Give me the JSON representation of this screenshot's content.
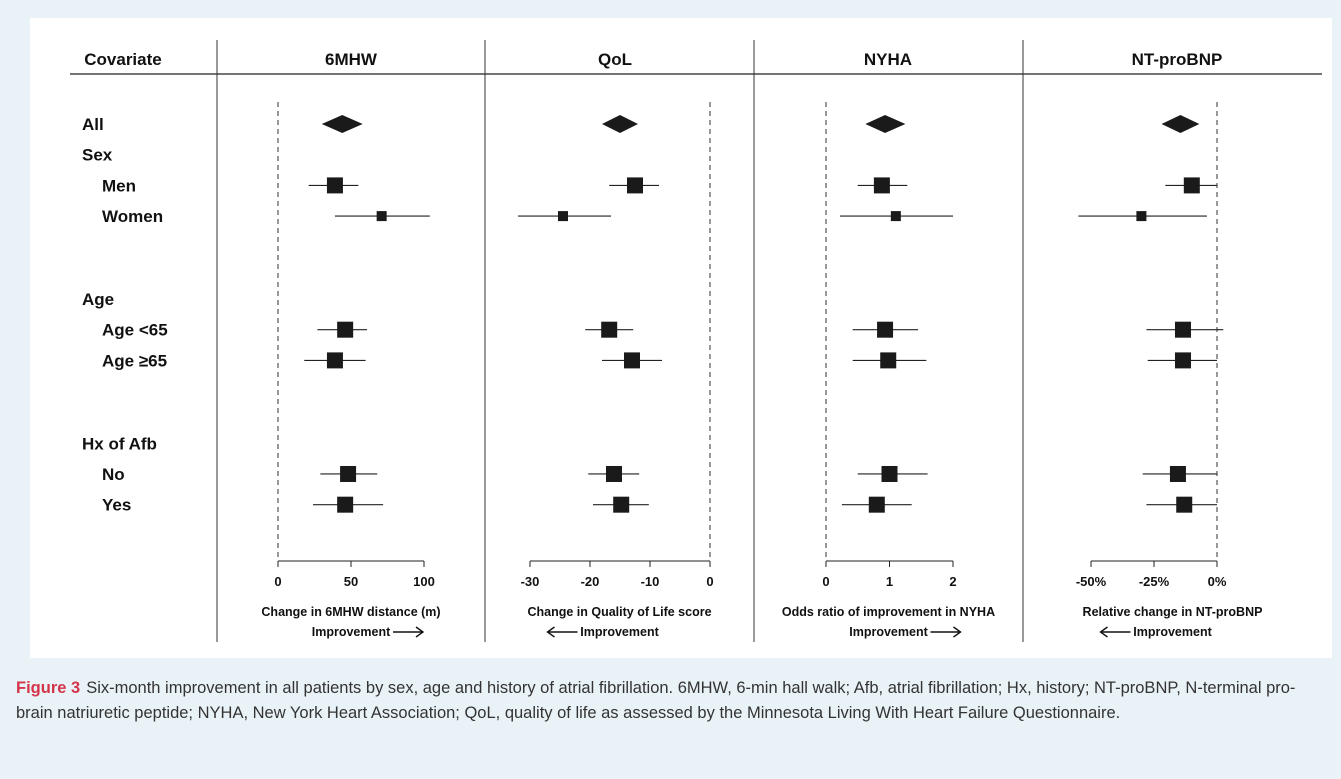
{
  "header": {
    "covariate": "Covariate"
  },
  "rows": [
    {
      "id": "all",
      "label": "All",
      "kind": "item",
      "indent": 0,
      "slot": 0
    },
    {
      "id": "sex",
      "label": "Sex",
      "kind": "group",
      "indent": 0,
      "slot": 1
    },
    {
      "id": "men",
      "label": "Men",
      "kind": "item",
      "indent": 1,
      "slot": 2
    },
    {
      "id": "women",
      "label": "Women",
      "kind": "item",
      "indent": 1,
      "slot": 3
    },
    {
      "id": "age",
      "label": "Age",
      "kind": "group",
      "indent": 0,
      "slot": 5.7
    },
    {
      "id": "age_lt65",
      "label": "Age <65",
      "kind": "item",
      "indent": 1,
      "slot": 6.7
    },
    {
      "id": "age_ge65",
      "label": "Age ≥65",
      "kind": "item",
      "indent": 1,
      "slot": 7.7
    },
    {
      "id": "afb",
      "label": "Hx of Afb",
      "kind": "group",
      "indent": 0,
      "slot": 10.4
    },
    {
      "id": "afb_no",
      "label": "No",
      "kind": "item",
      "indent": 1,
      "slot": 11.4
    },
    {
      "id": "afb_yes",
      "label": "Yes",
      "kind": "item",
      "indent": 1,
      "slot": 12.4
    }
  ],
  "chart_data": {
    "type": "forest",
    "panels": [
      {
        "title": "6MHW",
        "xlim": [
          0,
          100
        ],
        "ticks": [
          0,
          50,
          100
        ],
        "tick_labels": [
          "0",
          "50",
          "100"
        ],
        "reference": 0,
        "xlabel": "Change in 6MHW distance (m)",
        "direction_label": "Improvement",
        "arrow": "right",
        "points": {
          "all": {
            "est": 44,
            "lo": 30,
            "hi": 58,
            "marker": "diamond"
          },
          "men": {
            "est": 39,
            "lo": 21,
            "hi": 55,
            "marker": "square",
            "size": "large"
          },
          "women": {
            "est": 71,
            "lo": 39,
            "hi": 104,
            "marker": "square",
            "size": "small"
          },
          "age_lt65": {
            "est": 46,
            "lo": 27,
            "hi": 61,
            "marker": "square",
            "size": "large"
          },
          "age_ge65": {
            "est": 39,
            "lo": 18,
            "hi": 60,
            "marker": "square",
            "size": "large"
          },
          "afb_no": {
            "est": 48,
            "lo": 29,
            "hi": 68,
            "marker": "square",
            "size": "large"
          },
          "afb_yes": {
            "est": 46,
            "lo": 24,
            "hi": 72,
            "marker": "square",
            "size": "large"
          }
        }
      },
      {
        "title": "QoL",
        "xlim": [
          -30,
          0
        ],
        "ticks": [
          -30,
          -20,
          -10,
          0
        ],
        "tick_labels": [
          "-30",
          "-20",
          "-10",
          "0"
        ],
        "reference": 0,
        "xlabel": "Change in Quality of Life score",
        "direction_label": "Improvement",
        "arrow": "left",
        "points": {
          "all": {
            "est": -15,
            "lo": -18,
            "hi": -12,
            "marker": "diamond"
          },
          "men": {
            "est": -12.5,
            "lo": -16.8,
            "hi": -8.5,
            "marker": "square",
            "size": "large"
          },
          "women": {
            "est": -24.5,
            "lo": -32,
            "hi": -16.5,
            "marker": "square",
            "size": "small"
          },
          "age_lt65": {
            "est": -16.8,
            "lo": -20.8,
            "hi": -12.8,
            "marker": "square",
            "size": "large"
          },
          "age_ge65": {
            "est": -13,
            "lo": -18,
            "hi": -8,
            "marker": "square",
            "size": "large"
          },
          "afb_no": {
            "est": -16,
            "lo": -20.3,
            "hi": -11.8,
            "marker": "square",
            "size": "large"
          },
          "afb_yes": {
            "est": -14.8,
            "lo": -19.5,
            "hi": -10.2,
            "marker": "square",
            "size": "large"
          }
        }
      },
      {
        "title": "NYHA",
        "xlim": [
          0,
          2
        ],
        "ticks": [
          0,
          1,
          2
        ],
        "tick_labels": [
          "0",
          "1",
          "2"
        ],
        "reference": 0,
        "xlabel": "Odds ratio of improvement in NYHA",
        "direction_label": "Improvement",
        "arrow": "right",
        "points": {
          "all": {
            "est": 0.93,
            "lo": 0.62,
            "hi": 1.25,
            "marker": "diamond"
          },
          "men": {
            "est": 0.88,
            "lo": 0.5,
            "hi": 1.28,
            "marker": "square",
            "size": "large"
          },
          "women": {
            "est": 1.1,
            "lo": 0.22,
            "hi": 2.0,
            "marker": "square",
            "size": "small"
          },
          "age_lt65": {
            "est": 0.93,
            "lo": 0.42,
            "hi": 1.45,
            "marker": "square",
            "size": "large"
          },
          "age_ge65": {
            "est": 0.98,
            "lo": 0.42,
            "hi": 1.58,
            "marker": "square",
            "size": "large"
          },
          "afb_no": {
            "est": 1.0,
            "lo": 0.5,
            "hi": 1.6,
            "marker": "square",
            "size": "large"
          },
          "afb_yes": {
            "est": 0.8,
            "lo": 0.25,
            "hi": 1.35,
            "marker": "square",
            "size": "large"
          }
        }
      },
      {
        "title": "NT-proBNP",
        "xlim": [
          -50,
          0
        ],
        "ticks": [
          -50,
          -25,
          0
        ],
        "tick_labels": [
          "-50%",
          "-25%",
          "0%"
        ],
        "reference": 0,
        "xlabel": "Relative change in NT-proBNP",
        "direction_label": "Improvement",
        "arrow": "left",
        "points": {
          "all": {
            "est": -14.5,
            "lo": -22,
            "hi": -7,
            "marker": "diamond"
          },
          "men": {
            "est": -10,
            "lo": -20.5,
            "hi": 0,
            "marker": "square",
            "size": "large"
          },
          "women": {
            "est": -30,
            "lo": -55,
            "hi": -4,
            "marker": "square",
            "size": "small"
          },
          "age_lt65": {
            "est": -13.5,
            "lo": -28,
            "hi": 2.5,
            "marker": "square",
            "size": "large"
          },
          "age_ge65": {
            "est": -13.5,
            "lo": -27.5,
            "hi": 0,
            "marker": "square",
            "size": "large"
          },
          "afb_no": {
            "est": -15.5,
            "lo": -29.5,
            "hi": 0,
            "marker": "square",
            "size": "large"
          },
          "afb_yes": {
            "est": -13,
            "lo": -28,
            "hi": 0,
            "marker": "square",
            "size": "large"
          }
        }
      }
    ]
  },
  "caption": {
    "label": "Figure 3",
    "text": "Six-month improvement in all patients by sex, age and history of atrial fibrillation. 6MHW, 6-min hall walk; Afb, atrial fibrillation; Hx, history; NT-proBNP, N-terminal pro-brain natriuretic peptide; NYHA, New York Heart Association; QoL, quality of life as assessed by the Minnesota Living With Heart Failure Questionnaire."
  },
  "colors": {
    "accent": "#d4354a",
    "marker": "#1a1a1a",
    "background": "#e9f3f7"
  }
}
